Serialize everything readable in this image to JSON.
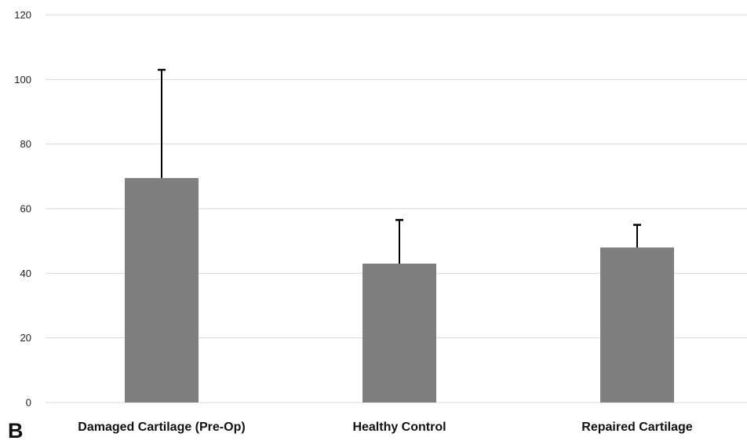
{
  "panel_label": "B",
  "colors": {
    "bar": "#7f7f7f",
    "grid": "#d9d9d9",
    "error_bar": "#000000"
  },
  "chart_data": {
    "type": "bar",
    "title": "",
    "xlabel": "",
    "ylabel": "",
    "ylim": [
      0,
      120
    ],
    "yticks": [
      0,
      20,
      40,
      60,
      80,
      100,
      120
    ],
    "grid": true,
    "categories": [
      "Damaged Cartilage (Pre-Op)",
      "Healthy Control",
      "Repaired Cartilage"
    ],
    "values": [
      69.5,
      43,
      48
    ],
    "error_upper": [
      103,
      56.5,
      55
    ]
  }
}
